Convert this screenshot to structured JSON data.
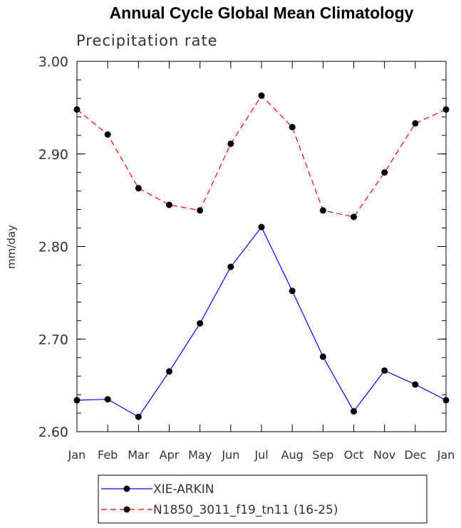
{
  "chart_data": {
    "type": "line",
    "title": "Annual Cycle Global Mean Climatology",
    "subtitle": "Precipitation rate",
    "ylabel": "mm/day",
    "xlabel": "",
    "categories": [
      "Jan",
      "Feb",
      "Mar",
      "Apr",
      "May",
      "Jun",
      "Jul",
      "Aug",
      "Sep",
      "Oct",
      "Nov",
      "Dec",
      "Jan"
    ],
    "ylim": [
      2.6,
      3.0
    ],
    "yticks": [
      "2.60",
      "2.70",
      "2.80",
      "2.90",
      "3.00"
    ],
    "grid": false,
    "legend_position": "bottom",
    "series": [
      {
        "name": "XIE-ARKIN",
        "color": "#0000ff",
        "dash": "solid",
        "marker": "dot",
        "values": [
          2.634,
          2.635,
          2.616,
          2.665,
          2.717,
          2.778,
          2.821,
          2.752,
          2.681,
          2.622,
          2.666,
          2.651,
          2.634
        ]
      },
      {
        "name": "N1850_3011_f19_tn11 (16-25)",
        "color": "#ff0000",
        "dash": "dashed",
        "marker": "dot",
        "values": [
          2.948,
          2.921,
          2.863,
          2.845,
          2.839,
          2.911,
          2.963,
          2.929,
          2.839,
          2.832,
          2.88,
          2.933,
          2.948
        ]
      }
    ]
  }
}
